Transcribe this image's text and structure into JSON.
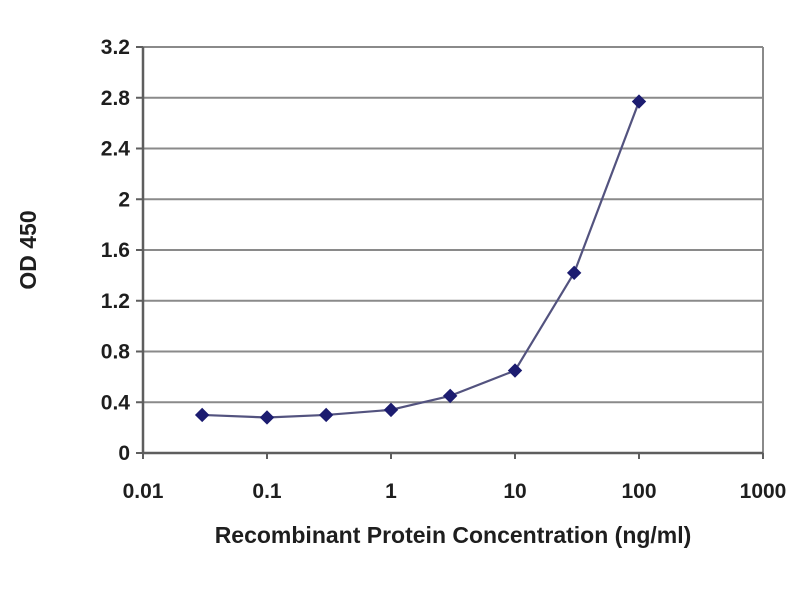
{
  "figure": {
    "background": "#ffffff"
  },
  "chart_data": {
    "type": "line",
    "title": "",
    "xlabel": "Recombinant Protein Concentration (ng/ml)",
    "ylabel": "OD 450",
    "x_scale": "log",
    "y_scale": "linear",
    "xlim": [
      0.01,
      1000
    ],
    "ylim": [
      0,
      3.2
    ],
    "x_ticks": [
      0.01,
      0.1,
      1,
      10,
      100,
      1000
    ],
    "x_tick_labels": [
      "0.01",
      "0.1",
      "1",
      "10",
      "100",
      "1000"
    ],
    "y_ticks": [
      0,
      0.4,
      0.8,
      1.2,
      1.6,
      2,
      2.4,
      2.8,
      3.2
    ],
    "y_tick_labels": [
      "0",
      "0.4",
      "0.8",
      "1.2",
      "1.6",
      "2",
      "2.4",
      "2.8",
      "3.2"
    ],
    "grid": "horizontal",
    "legend": "none",
    "series": [
      {
        "name": "OD 450",
        "marker": "diamond",
        "line_color": "#53537f",
        "marker_color": "#1c1c70",
        "points": [
          {
            "x": 0.03,
            "y": 0.3
          },
          {
            "x": 0.1,
            "y": 0.28
          },
          {
            "x": 0.3,
            "y": 0.3
          },
          {
            "x": 1,
            "y": 0.34
          },
          {
            "x": 3,
            "y": 0.45
          },
          {
            "x": 10,
            "y": 0.65
          },
          {
            "x": 30,
            "y": 1.42
          },
          {
            "x": 100,
            "y": 2.77
          }
        ]
      }
    ],
    "colors": {
      "gridline": "#8a8a8a",
      "axis": "#5e5e5e",
      "tick_label": "#1e1e1e",
      "axis_label": "#1e1e1e",
      "plot_bg": "#ffffff"
    }
  }
}
